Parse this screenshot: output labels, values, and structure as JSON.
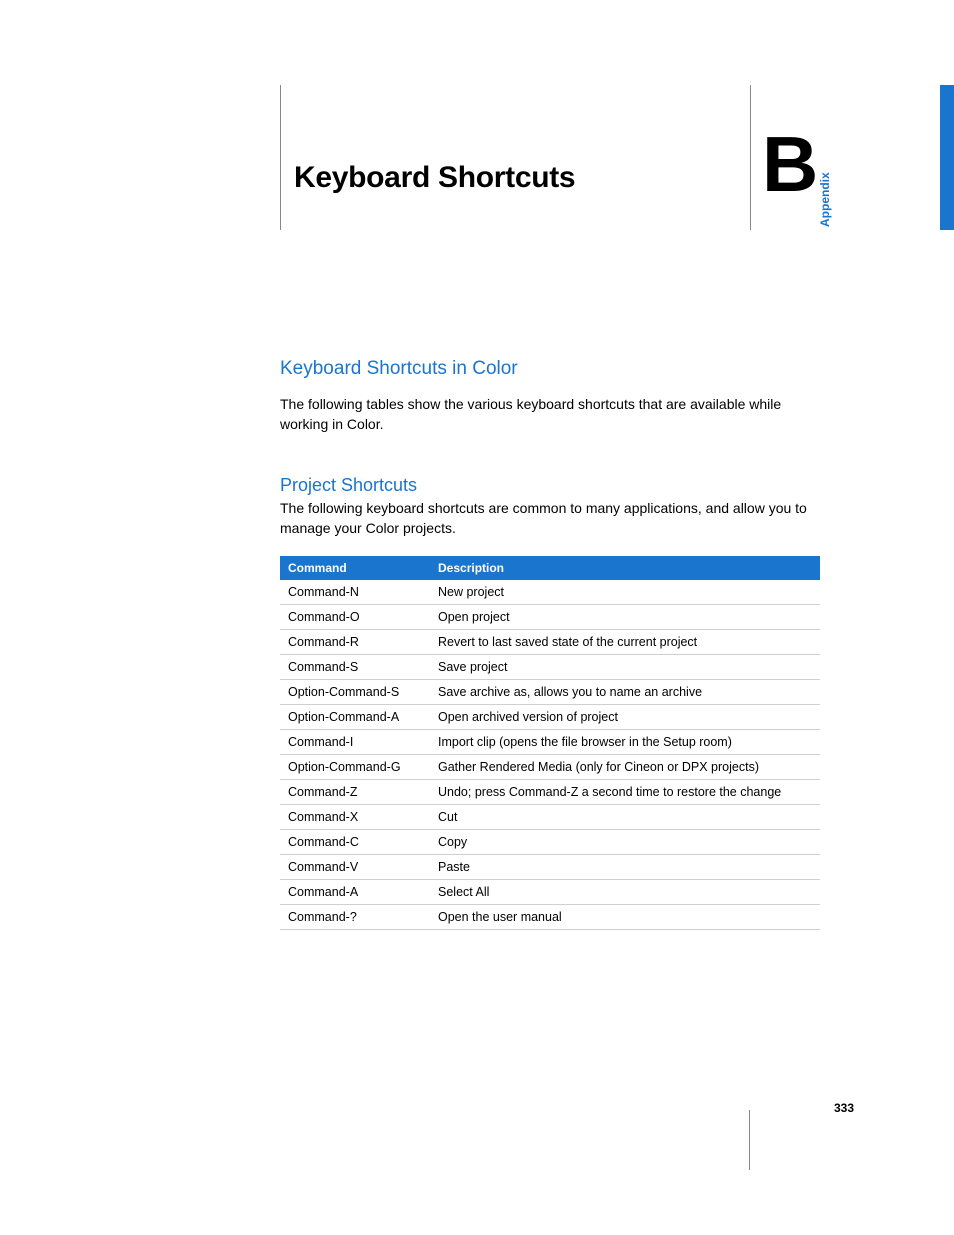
{
  "header": {
    "title": "Keyboard Shortcuts",
    "appendix_letter": "B",
    "appendix_label": "Appendix"
  },
  "section1": {
    "heading": "Keyboard Shortcuts in Color",
    "body": "The following tables show the various keyboard shortcuts that are available while working in Color."
  },
  "section2": {
    "heading": "Project Shortcuts",
    "body": "The following keyboard shortcuts are common to many applications, and allow you to manage your Color projects."
  },
  "table": {
    "columns": [
      "Command",
      "Description"
    ],
    "header_bg": "#1a75cf",
    "header_fg": "#ffffff",
    "row_border": "#d0d0d0",
    "rows": [
      [
        "Command-N",
        "New project"
      ],
      [
        "Command-O",
        "Open project"
      ],
      [
        "Command-R",
        "Revert to last saved state of the current project"
      ],
      [
        "Command-S",
        "Save project"
      ],
      [
        "Option-Command-S",
        "Save archive as, allows you to name an archive"
      ],
      [
        "Option-Command-A",
        "Open archived version of project"
      ],
      [
        "Command-I",
        "Import clip (opens the file browser in the Setup room)"
      ],
      [
        "Option-Command-G",
        "Gather Rendered Media (only for Cineon or DPX projects)"
      ],
      [
        "Command-Z",
        "Undo; press Command-Z a second time to restore the change"
      ],
      [
        "Command-X",
        "Cut"
      ],
      [
        "Command-C",
        "Copy"
      ],
      [
        "Command-V",
        "Paste"
      ],
      [
        "Command-A",
        "Select All"
      ],
      [
        "Command-?",
        "Open the user manual"
      ]
    ]
  },
  "page_number": "333",
  "colors": {
    "accent": "#1a75cf",
    "text": "#000000",
    "rule": "#888888",
    "background": "#ffffff"
  }
}
